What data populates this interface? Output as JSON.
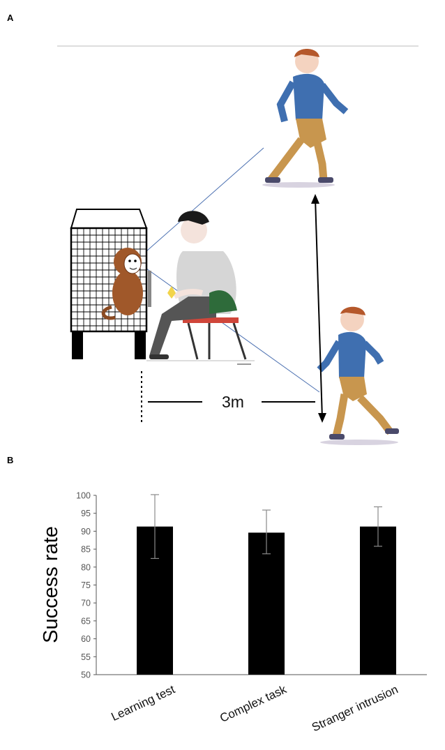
{
  "panels": {
    "a": "A",
    "b": "B"
  },
  "illustration": {
    "distance_label": "3m"
  },
  "chart_data": {
    "type": "bar",
    "categories": [
      "Learning test",
      "Complex task",
      "Stranger intrusion"
    ],
    "values": [
      91.3,
      89.6,
      91.3
    ],
    "error_high": [
      100.2,
      95.9,
      96.8
    ],
    "error_low": [
      82.4,
      83.7,
      85.8
    ],
    "ylabel": "Success rate",
    "xlabel": "",
    "ylim": [
      50,
      100
    ],
    "yticks": [
      50,
      55,
      60,
      65,
      70,
      75,
      80,
      85,
      90,
      95,
      100
    ],
    "bar_color": "#000000",
    "error_color": "#8a8a8a",
    "grid": false
  }
}
